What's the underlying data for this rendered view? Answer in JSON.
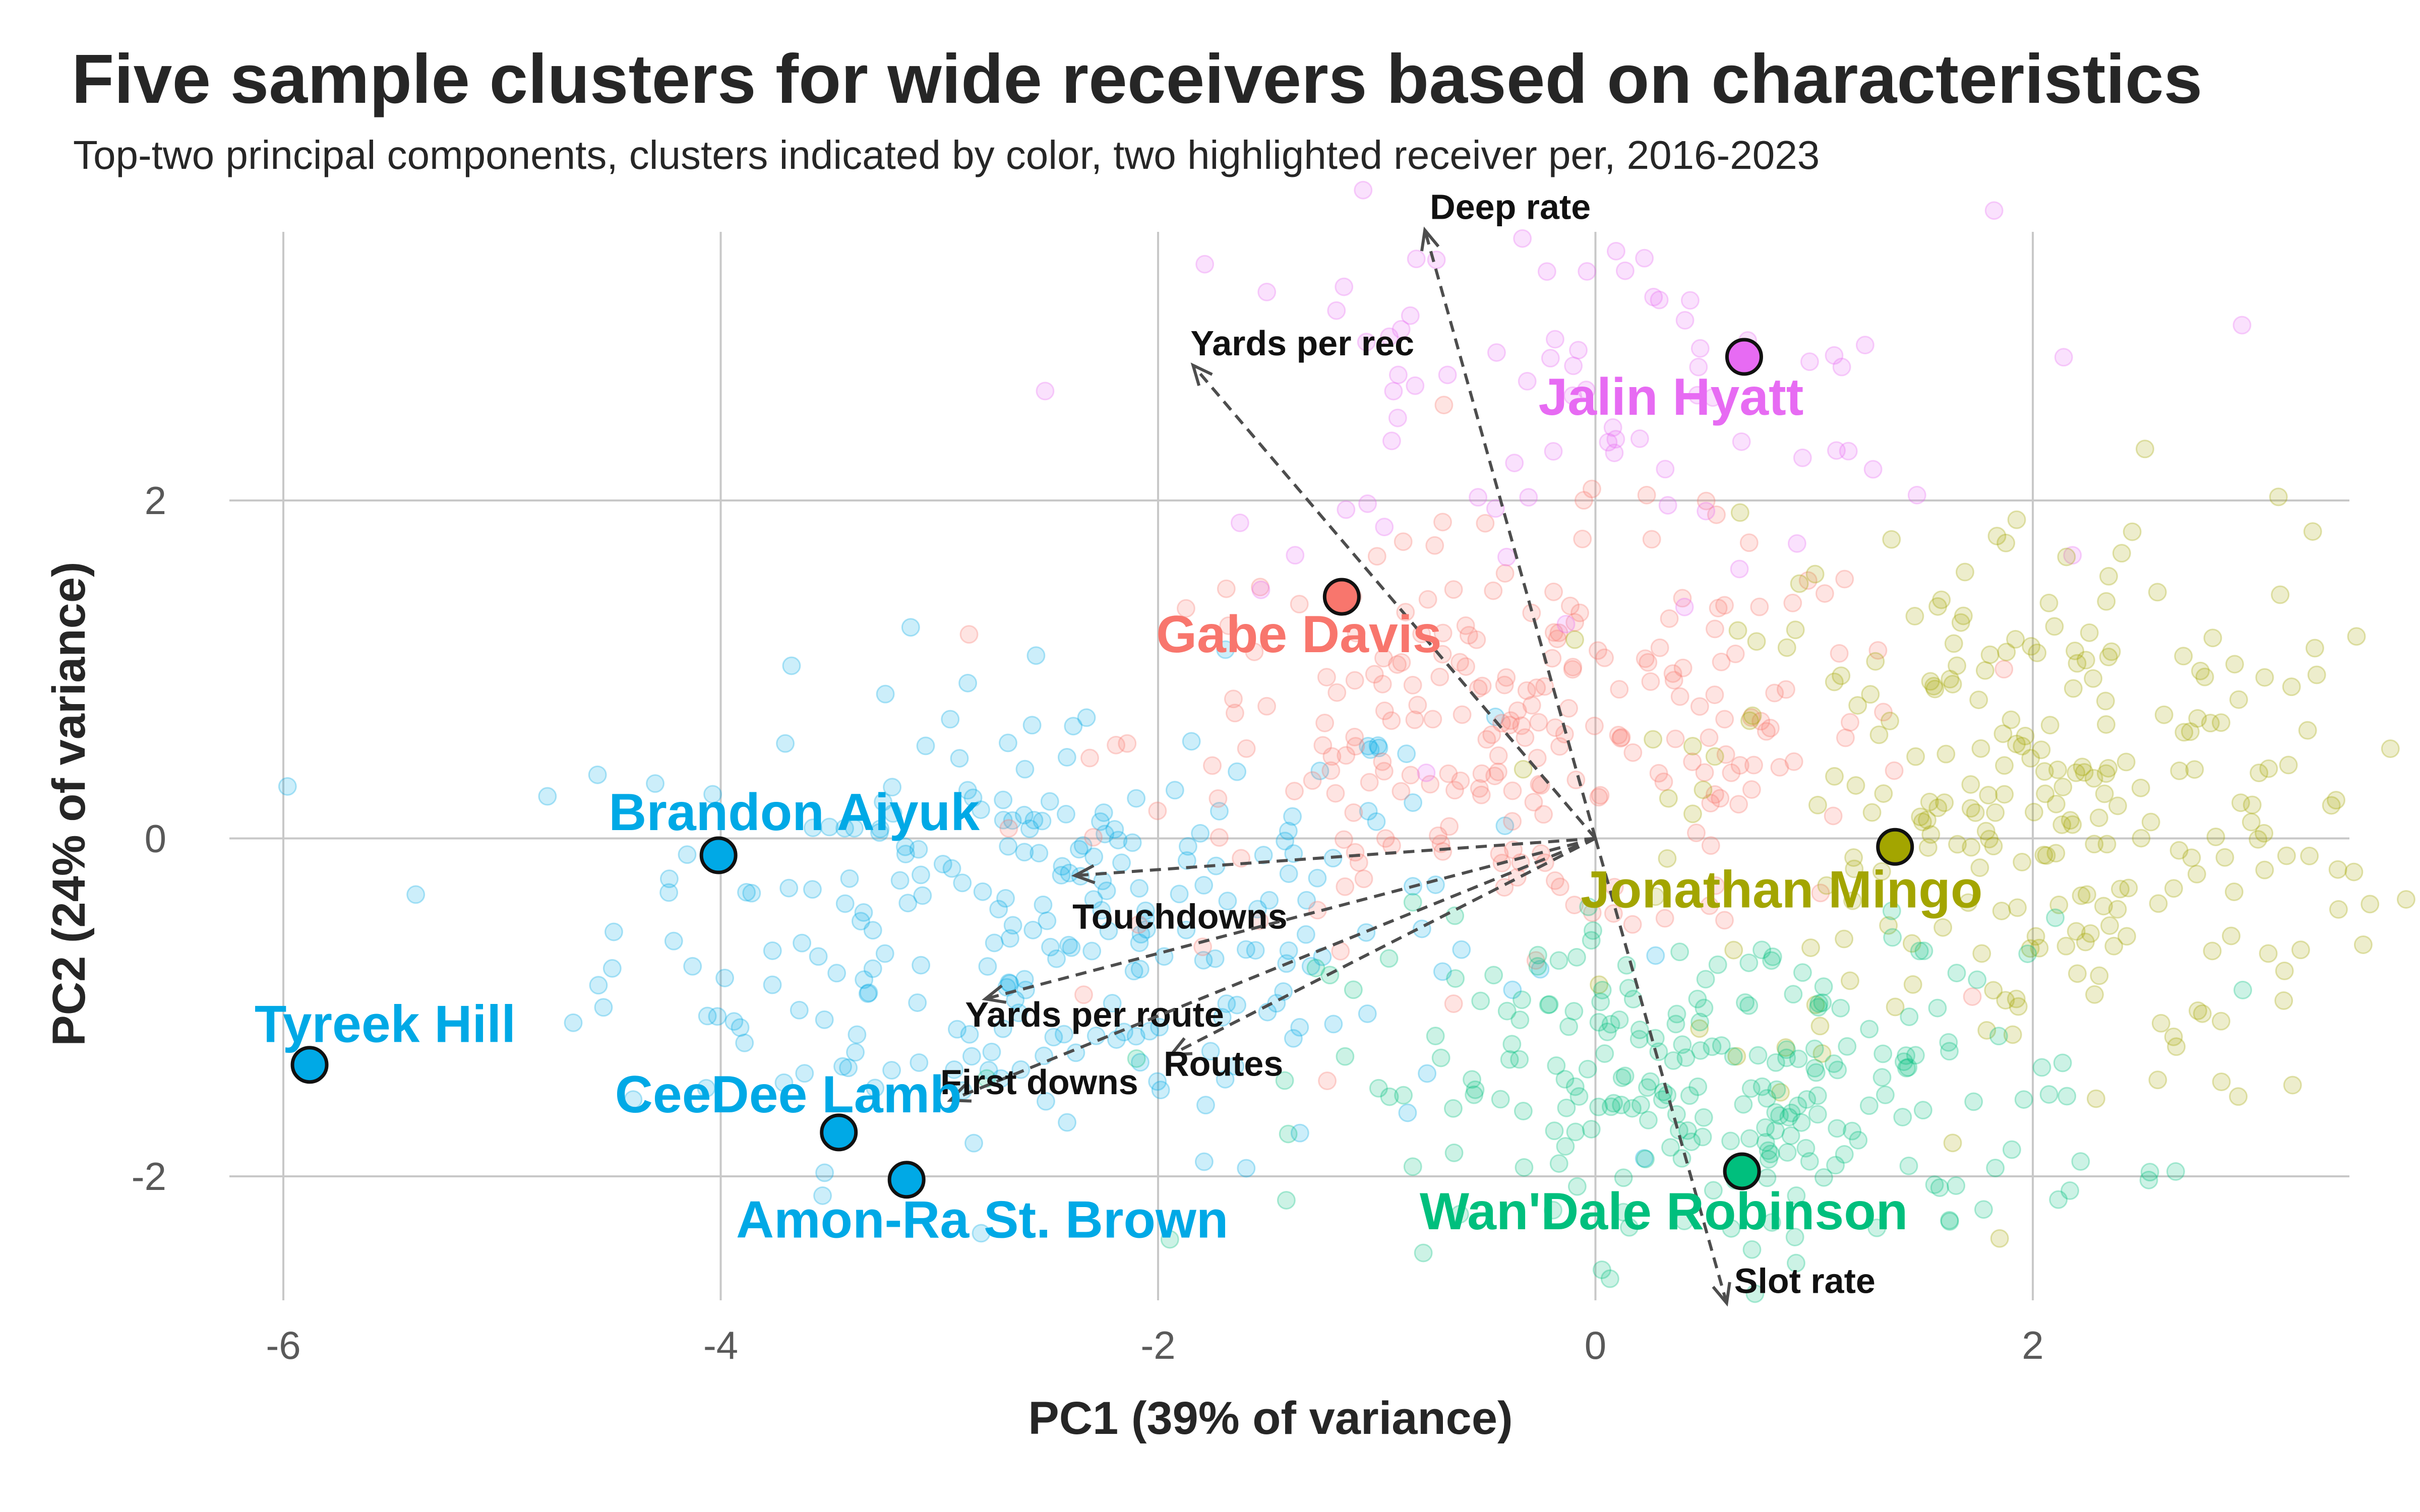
{
  "chart_data": {
    "type": "scatter",
    "title": "Five sample clusters for wide receivers based on characteristics",
    "subtitle": "Top-two principal components, clusters indicated by color, two highlighted receiver per, 2016-2023",
    "xlabel": "PC1 (39% of variance)",
    "ylabel": "PC2 (24% of variance)",
    "xlim": [
      -6.5,
      3.5
    ],
    "ylim": [
      -2.75,
      3.6
    ],
    "x_ticks": [
      -6,
      -4,
      -2,
      0,
      2
    ],
    "y_ticks": [
      -2,
      0,
      2
    ],
    "x_tick_labels": [
      "-6",
      "-4",
      "-2",
      "0",
      "2"
    ],
    "y_tick_labels": [
      "-2",
      "0",
      "2"
    ],
    "grid": true,
    "legend": "none",
    "clusters": [
      {
        "color": "#00a9e6"
      },
      {
        "color": "#f8766d"
      },
      {
        "color": "#e76bf3"
      },
      {
        "color": "#a3a500"
      },
      {
        "color": "#00bf7d"
      }
    ],
    "highlighted_players": [
      {
        "name": "Tyreek Hill",
        "x": -5.88,
        "y": -1.34,
        "cluster": 0
      },
      {
        "name": "Brandon Aiyuk",
        "x": -4.01,
        "y": -0.1,
        "cluster": 0
      },
      {
        "name": "CeeDee Lamb",
        "x": -3.46,
        "y": -1.74,
        "cluster": 0
      },
      {
        "name": "Amon-Ra St. Brown",
        "x": -3.15,
        "y": -2.02,
        "cluster": 0
      },
      {
        "name": "Gabe Davis",
        "x": -1.16,
        "y": 1.43,
        "cluster": 1
      },
      {
        "name": "Jalin Hyatt",
        "x": 0.68,
        "y": 2.85,
        "cluster": 2
      },
      {
        "name": "Jonathan Mingo",
        "x": 1.37,
        "y": -0.05,
        "cluster": 3
      },
      {
        "name": "Wan'Dale Robinson",
        "x": 0.67,
        "y": -1.97,
        "cluster": 4
      }
    ],
    "loading_vectors": [
      {
        "name": "Deep rate",
        "x": -0.78,
        "y": 3.6
      },
      {
        "name": "Yards per rec",
        "x": -1.84,
        "y": 2.8
      },
      {
        "name": "Touchdowns",
        "x": -2.38,
        "y": -0.22
      },
      {
        "name": "Yards per route",
        "x": -2.79,
        "y": -0.95
      },
      {
        "name": "Routes",
        "x": -1.94,
        "y": -1.28
      },
      {
        "name": "First downs",
        "x": -2.95,
        "y": -1.55
      },
      {
        "name": "Slot rate",
        "x": 0.6,
        "y": -2.75
      }
    ]
  }
}
